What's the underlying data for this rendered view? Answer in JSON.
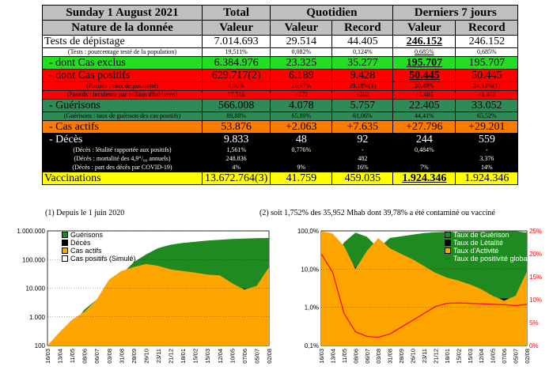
{
  "table": {
    "date": "Sunday 1 August 2021",
    "col_total": "Total",
    "col_quotidien": "Quotidien",
    "col_7j": "Derniers 7 jours",
    "nature": "Nature de la donnée",
    "valeur": "Valeur",
    "record": "Record",
    "rows": [
      {
        "label": "Tests de dépistage",
        "total": "7.014.693",
        "q_val": "29.514",
        "q_rec": "44.405",
        "w_val": "246.152",
        "w_rec": "246.152"
      },
      {
        "label": "(Tests : pourcentage testé de la population)",
        "total": "19,511%",
        "q_val": "0,082%",
        "q_rec": "0,124%",
        "w_val": "0,685%",
        "w_rec": "0,685%"
      },
      {
        "label": "- dont Cas exclus",
        "total": "6.384.976",
        "q_val": "23.325",
        "q_rec": "35.277",
        "w_val": "195.707",
        "w_rec": "195.707"
      },
      {
        "label": "- dont Cas positifs",
        "total": "629.717(2)",
        "q_val": "6.189",
        "q_rec": "9.428",
        "w_val": "50.445",
        "w_rec": "50.445"
      },
      {
        "label": "(Positifs : taux de positivité)",
        "total": "8,98%",
        "q_val": "20,97%",
        "q_rec": "29,18%(1)",
        "w_val": "20,49%",
        "w_rec": "24,62%(1)"
      },
      {
        "label": "(Positifs : incidence par million d'habitants)",
        "total": "17.516",
        "q_val": "+172",
        "q_rec": "+262",
        "w_val": "+1.403",
        "w_rec": "+1.403"
      },
      {
        "label": "- Guérisons",
        "total": "566.008",
        "q_val": "4.078",
        "q_rec": "5.757",
        "w_val": "22.405",
        "w_rec": "33.052"
      },
      {
        "label": "(Guérisons : taux de guérison des cas positifs)",
        "total": "89,88%",
        "q_val": "65,89%",
        "q_rec": "61,06%",
        "w_val": "44,41%",
        "w_rec": "65,52%"
      },
      {
        "label": "- Cas actifs",
        "total": "53.876",
        "q_val": "+2.063",
        "q_rec": "+7.635",
        "w_val": "+27.796",
        "w_rec": "+29.201"
      },
      {
        "label": "- Décès",
        "total": "9.833",
        "q_val": "48",
        "q_rec": "92",
        "w_val": "244",
        "w_rec": "559"
      },
      {
        "label": "(Décès : létalité rapportée aux positifs)",
        "total": "1,561%",
        "q_val": "0,776%",
        "q_rec": "-",
        "w_val": "0,484%",
        "w_rec": "-"
      },
      {
        "label": "(Décès : mortalité des 4,9°/₀₀ annuels)",
        "total": "248.836",
        "q_val": "",
        "q_rec": "482",
        "w_val": "",
        "w_rec": "3.376"
      },
      {
        "label": "(Décès : part des décès par COVID-19)",
        "total": "4%",
        "q_val": "9%",
        "q_rec": "16%",
        "w_val": "7%",
        "w_rec": "14%"
      },
      {
        "label": "Vaccinations",
        "total": "13.672.764(3)",
        "q_val": "41.759",
        "q_rec": "459.035",
        "w_val": "1.924.346",
        "w_rec": "1.924.346"
      }
    ]
  },
  "footnotes": {
    "left": "(1) Depuis le 1 juin 2020",
    "right": "(2) soit 1,752% des 35,952 Mhab dont 39,78% a été contaminé ou vacciné"
  },
  "colors": {
    "green": "#22dd22",
    "red": "#ff0000",
    "sea_green": "#2e8b57",
    "orange": "#ff7a00",
    "black": "#000000",
    "yellow": "#ffff00",
    "chart_green": "#1f8a1f",
    "chart_orange": "#ffa500"
  },
  "chart_data": [
    {
      "type": "area",
      "scale": "log",
      "ylim": [
        100,
        1000000
      ],
      "y_ticks": [
        "1.000.000",
        "100.000",
        "10.000",
        "1.000",
        "100"
      ],
      "x_ticks": [
        "16/03",
        "13/04",
        "11/05",
        "08/06",
        "06/07",
        "03/08",
        "31/08",
        "28/09",
        "26/10",
        "23/11",
        "21/12",
        "18/01",
        "15/02",
        "15/03",
        "12/04",
        "10/05",
        "07/06",
        "05/07",
        "02/08"
      ],
      "legend_position": "top-left",
      "legend": [
        "Guérisons",
        "Décès",
        "Cas actifs",
        "Cas positifs (Simulé)"
      ],
      "series": [
        {
          "name": "Guérisons",
          "values": [
            100,
            150,
            500,
            1800,
            4000,
            8000,
            30000,
            80000,
            150000,
            250000,
            330000,
            380000,
            420000,
            460000,
            490000,
            520000,
            540000,
            555000,
            566008
          ]
        },
        {
          "name": "Décès",
          "values": [
            100,
            120,
            260,
            380,
            700,
            1600,
            2800,
            3500,
            4500,
            5800,
            6800,
            7700,
            8300,
            8800,
            9200,
            9500,
            9650,
            9750,
            9833
          ]
        },
        {
          "name": "Cas actifs",
          "values": [
            100,
            300,
            800,
            1500,
            4000,
            20000,
            40000,
            55000,
            70000,
            60000,
            45000,
            40000,
            35000,
            30000,
            28000,
            15000,
            9000,
            12000,
            53876
          ]
        },
        {
          "name": "Cas positifs (Simulé)",
          "values": [
            100,
            160,
            820,
            3800,
            11000,
            30000,
            75000,
            140000,
            220000,
            320000,
            380000,
            430000,
            470000,
            500000,
            530000,
            545000,
            560000,
            580000,
            629717
          ]
        }
      ]
    },
    {
      "type": "area",
      "scale": "log",
      "ylim": [
        0.1,
        100
      ],
      "y_ticks": [
        "100,0%",
        "10,0%",
        "1,0%",
        "0,1%"
      ],
      "y2lim": [
        0,
        25
      ],
      "y2_ticks": [
        "25%",
        "20%",
        "15%",
        "10%",
        "5%",
        "0%"
      ],
      "x_ticks": [
        "16/03",
        "13/04",
        "11/05",
        "08/06",
        "06/07",
        "03/08",
        "31/08",
        "28/09",
        "26/10",
        "23/11",
        "21/12",
        "18/01",
        "15/02",
        "15/03",
        "12/04",
        "10/05",
        "07/06",
        "05/07",
        "02/08"
      ],
      "legend_position": "top-right",
      "legend": [
        "Taux de Guérison",
        "Taux de Létalité",
        "Taux d'Activité",
        "Taux de positivité global"
      ],
      "series": [
        {
          "name": "Taux de Guérison",
          "values": [
            1,
            15,
            50,
            90,
            70,
            35,
            65,
            72,
            80,
            88,
            92,
            94,
            95,
            95,
            96,
            97,
            98,
            98,
            89.88
          ]
        },
        {
          "name": "Taux de Létalité",
          "values": [
            1.2,
            10,
            25,
            11,
            6,
            3,
            2.5,
            2.2,
            1.9,
            1.8,
            1.8,
            1.8,
            1.8,
            1.7,
            1.7,
            1.7,
            1.7,
            1.7,
            1.561
          ]
        },
        {
          "name": "Taux d'Activité",
          "values": [
            98,
            85,
            40,
            10,
            30,
            65,
            35,
            25,
            18,
            12,
            8,
            6,
            5,
            4,
            3,
            2,
            1.5,
            2,
            8.56
          ]
        },
        {
          "name": "Taux de positivité global",
          "values": [
            20,
            16,
            7,
            3,
            2,
            1.8,
            2.5,
            4,
            5.5,
            7,
            8.5,
            9.2,
            9.3,
            9.2,
            9.1,
            9.0,
            8.9,
            8.7,
            8.98
          ]
        }
      ]
    }
  ]
}
